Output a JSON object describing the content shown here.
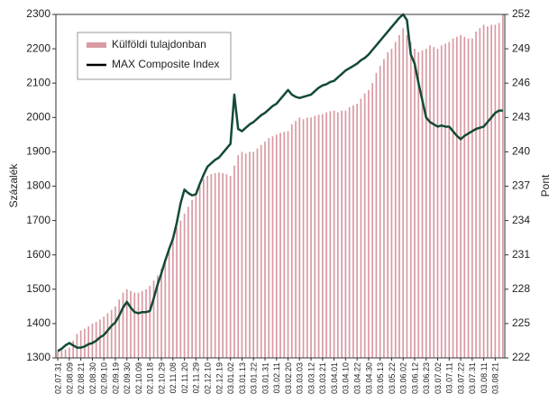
{
  "chart_data": {
    "type": "bar",
    "y_label": "Százalék",
    "y2_label": "Pont",
    "categories": [
      "02.07.31",
      null,
      null,
      "02.08.09",
      null,
      null,
      "02.08.21",
      null,
      null,
      "02.08.30",
      null,
      null,
      "02.09.10",
      null,
      null,
      "02.09.19",
      null,
      null,
      "02.09.30",
      null,
      null,
      "02.10.09",
      null,
      null,
      "02.10.18",
      null,
      null,
      "02.10.29",
      null,
      null,
      "02.11.08",
      null,
      null,
      "02.11.20",
      null,
      null,
      "02.11.29",
      null,
      null,
      "02.12.10",
      null,
      null,
      "02.12.19",
      null,
      null,
      "03.01.02",
      null,
      null,
      "03.01.13",
      null,
      null,
      "03.01.22",
      null,
      null,
      "03.01.31",
      null,
      null,
      "03.02.11",
      null,
      null,
      "03.02.20",
      null,
      null,
      "03.03.03",
      null,
      null,
      "03.03.12",
      null,
      null,
      "03.03.21",
      null,
      null,
      "03.04.01",
      null,
      null,
      "03.04.10",
      null,
      null,
      "03.04.22",
      null,
      null,
      "03.04.30",
      null,
      null,
      "03.05.13",
      null,
      null,
      "03.05.22",
      null,
      null,
      "03.06.02",
      null,
      null,
      "03.06.12",
      null,
      null,
      "03.06.23",
      null,
      null,
      "03.07.02",
      null,
      null,
      "03.07.11",
      null,
      null,
      "03.07.22",
      null,
      null,
      "03.07.31",
      null,
      null,
      "03.08.11",
      null,
      null,
      "03.08.21",
      null,
      null
    ],
    "series": [
      {
        "name": "Külföldi tulajdonban",
        "type": "bar",
        "color": "#d99aa3",
        "values": [
          1320,
          1322,
          1325,
          1330,
          1350,
          1370,
          1380,
          1385,
          1392,
          1400,
          1405,
          1412,
          1420,
          1430,
          1440,
          1450,
          1470,
          1490,
          1500,
          1495,
          1490,
          1490,
          1495,
          1500,
          1510,
          1525,
          1540,
          1560,
          1590,
          1620,
          1650,
          1680,
          1700,
          1720,
          1740,
          1760,
          1780,
          1800,
          1820,
          1830,
          1835,
          1838,
          1840,
          1838,
          1835,
          1830,
          1860,
          1890,
          1900,
          1895,
          1900,
          1900,
          1910,
          1920,
          1930,
          1940,
          1945,
          1950,
          1955,
          1958,
          1960,
          1980,
          1990,
          2000,
          1995,
          2000,
          2000,
          2005,
          2008,
          2010,
          2015,
          2018,
          2020,
          2015,
          2020,
          2020,
          2030,
          2035,
          2040,
          2055,
          2070,
          2080,
          2100,
          2130,
          2150,
          2170,
          2190,
          2200,
          2220,
          2240,
          2260,
          2240,
          2220,
          2200,
          2190,
          2195,
          2200,
          2210,
          2205,
          2200,
          2210,
          2215,
          2220,
          2230,
          2235,
          2240,
          2235,
          2230,
          2230,
          2250,
          2260,
          2270,
          2265,
          2270,
          2270,
          2275,
          2300
        ]
      },
      {
        "name": "MAX Composite Index",
        "type": "line",
        "axis": "y2",
        "color": "#134a36",
        "values": [
          222.6,
          222.8,
          223.1,
          223.3,
          223.1,
          222.9,
          222.9,
          223.0,
          223.2,
          223.3,
          223.5,
          223.8,
          224.0,
          224.4,
          224.8,
          225.1,
          225.7,
          226.4,
          226.9,
          226.4,
          226.0,
          225.9,
          226.0,
          226.0,
          226.1,
          227.2,
          228.4,
          229.4,
          230.5,
          231.5,
          232.4,
          233.8,
          235.5,
          236.7,
          236.4,
          236.2,
          236.3,
          237.2,
          238.0,
          238.7,
          239.0,
          239.3,
          239.5,
          239.9,
          240.3,
          240.7,
          245.0,
          242.0,
          241.8,
          242.1,
          242.4,
          242.6,
          242.9,
          243.2,
          243.4,
          243.7,
          244.0,
          244.2,
          244.6,
          245.0,
          245.4,
          245.0,
          244.8,
          244.7,
          244.8,
          244.9,
          245.0,
          245.3,
          245.6,
          245.8,
          245.9,
          246.1,
          246.2,
          246.5,
          246.8,
          247.1,
          247.3,
          247.5,
          247.7,
          248.0,
          248.2,
          248.5,
          248.9,
          249.3,
          249.7,
          250.1,
          250.5,
          250.9,
          251.3,
          251.7,
          252.0,
          251.5,
          248.5,
          247.7,
          246.0,
          244.5,
          243.0,
          242.6,
          242.4,
          242.2,
          242.3,
          242.2,
          242.2,
          241.8,
          241.4,
          241.1,
          241.4,
          241.6,
          241.8,
          242.0,
          242.1,
          242.2,
          242.6,
          243.0,
          243.4,
          243.6,
          243.6
        ]
      }
    ],
    "ylim": [
      1300,
      2300
    ],
    "yticks": [
      1300,
      1400,
      1500,
      1600,
      1700,
      1800,
      1900,
      2000,
      2100,
      2200,
      2300
    ],
    "y2lim": [
      222,
      252
    ],
    "y2ticks": [
      222,
      225,
      228,
      231,
      234,
      237,
      240,
      243,
      246,
      249,
      252
    ],
    "grid": false
  }
}
